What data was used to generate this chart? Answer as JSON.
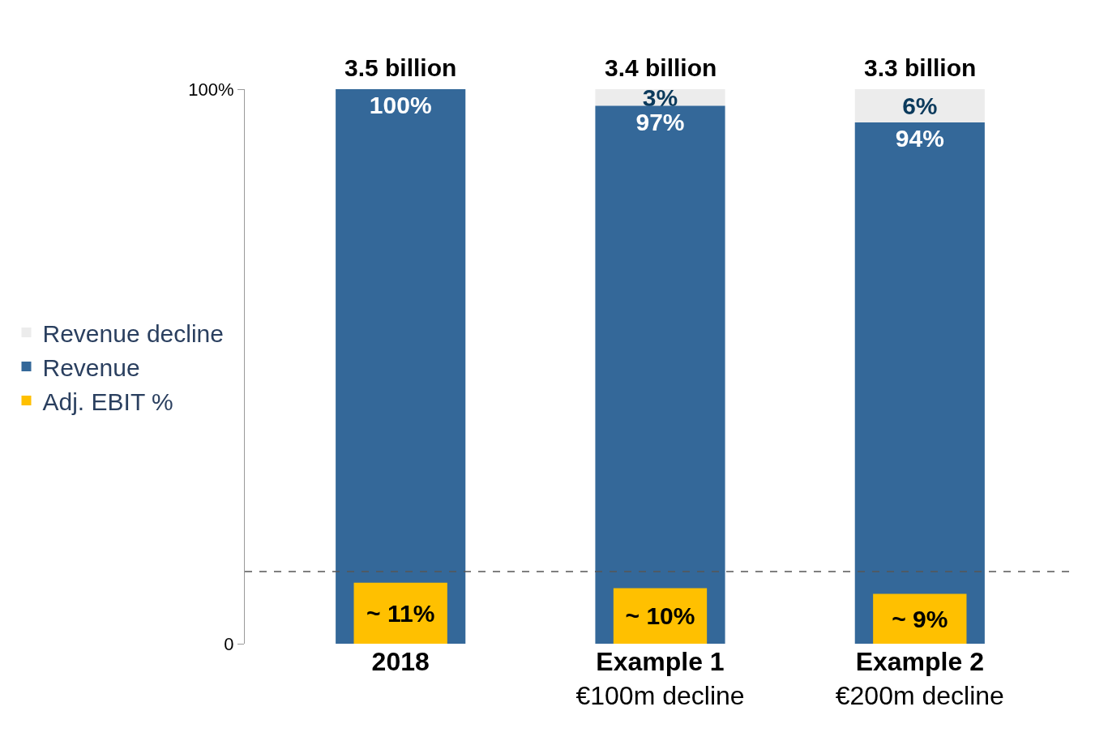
{
  "chart_data": {
    "type": "bar",
    "categories": [
      "2018",
      "Example 1\n€100m decline",
      "Example 2\n€200m decline"
    ],
    "series": [
      {
        "name": "Revenue decline",
        "color": "#ececec",
        "values": [
          null,
          3,
          6
        ],
        "base": [
          null,
          97,
          94
        ],
        "value_labels": [
          null,
          "3%",
          "6%"
        ]
      },
      {
        "name": "Revenue",
        "color": "#346899",
        "values": [
          100,
          97,
          94
        ],
        "value_labels": [
          "100%",
          "97%",
          "94%"
        ]
      },
      {
        "name": "Adj. EBIT %",
        "color": "#ffc000",
        "values": [
          11,
          10,
          9
        ],
        "value_labels": [
          "~ 11%",
          "~ 10%",
          "~ 9%"
        ]
      }
    ],
    "annotations": [
      "3.5 billion",
      "3.4 billion",
      "3.3 billion"
    ],
    "ylim": [
      0,
      100
    ],
    "yticks": [
      0,
      {
        "value": 100,
        "label": "100%"
      }
    ],
    "ref_lines": [
      {
        "axis": "y",
        "value": 13,
        "color": "#555555",
        "line_style": "dashed"
      }
    ],
    "legend": "left"
  }
}
